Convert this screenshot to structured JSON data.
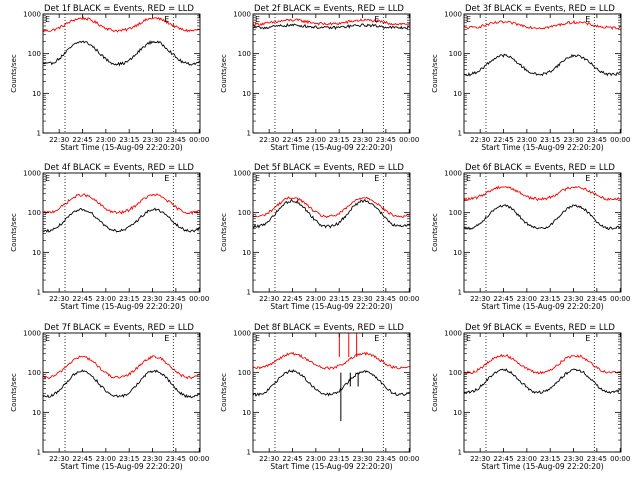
{
  "chart_data": {
    "type": "line",
    "layout": "3x3 grid",
    "y_scale": "log",
    "ylim": [
      1,
      1000
    ],
    "y_ticks": [
      "1",
      "10",
      "100",
      "1000"
    ],
    "ylabel": "Counts/sec",
    "xlabel": "Start Time (15-Aug-09 22:20:20)",
    "x_ticks": [
      "22:30",
      "22:45",
      "23:00",
      "23:15",
      "23:30",
      "23:45",
      "00:00"
    ],
    "colors": {
      "events": "#000000",
      "lld": "#ff0000"
    },
    "markers": {
      "left": "E",
      "right": "E"
    },
    "panels": [
      {
        "title": "Det 1f BLACK = Events, RED = LLD",
        "events": {
          "low": 55,
          "high": 200
        },
        "lld": {
          "low": 380,
          "high": 780
        }
      },
      {
        "title": "Det 2f BLACK = Events, RED = LLD",
        "events": {
          "low": 450,
          "high": 520
        },
        "lld": {
          "low": 560,
          "high": 700
        }
      },
      {
        "title": "Det 3f BLACK = Events, RED = LLD",
        "events": {
          "low": 30,
          "high": 90
        },
        "lld": {
          "low": 450,
          "high": 620
        }
      },
      {
        "title": "Det 4f BLACK = Events, RED = LLD",
        "events": {
          "low": 35,
          "high": 120
        },
        "lld": {
          "low": 100,
          "high": 280
        }
      },
      {
        "title": "Det 5f BLACK = Events, RED = LLD",
        "events": {
          "low": 45,
          "high": 200
        },
        "lld": {
          "low": 80,
          "high": 240
        }
      },
      {
        "title": "Det 6f BLACK = Events, RED = LLD",
        "events": {
          "low": 40,
          "high": 150
        },
        "lld": {
          "low": 220,
          "high": 450
        }
      },
      {
        "title": "Det 7f BLACK = Events, RED = LLD",
        "events": {
          "low": 25,
          "high": 110
        },
        "lld": {
          "low": 75,
          "high": 250
        }
      },
      {
        "title": "Det 8f BLACK = Events, RED = LLD",
        "events": {
          "low": 28,
          "high": 110
        },
        "lld": {
          "low": 130,
          "high": 300
        }
      },
      {
        "title": "Det 9f BLACK = Events, RED = LLD",
        "events": {
          "low": 32,
          "high": 120
        },
        "lld": {
          "low": 100,
          "high": 270
        }
      }
    ]
  }
}
